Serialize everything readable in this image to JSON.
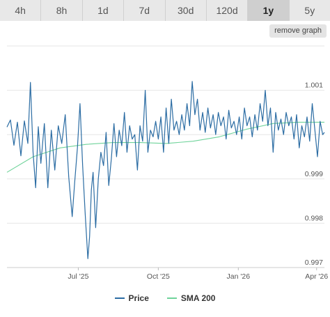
{
  "tabs": [
    {
      "label": "4h",
      "active": false
    },
    {
      "label": "8h",
      "active": false
    },
    {
      "label": "1d",
      "active": false
    },
    {
      "label": "7d",
      "active": false
    },
    {
      "label": "30d",
      "active": false
    },
    {
      "label": "120d",
      "active": false
    },
    {
      "label": "1y",
      "active": true
    },
    {
      "label": "5y",
      "active": false
    }
  ],
  "remove_graph_label": "remove graph",
  "colors": {
    "price": "#2b6ca3",
    "sma": "#6fd39a",
    "grid": "#e6e6e6"
  },
  "chart_data": {
    "type": "line",
    "title": "",
    "xlabel": "",
    "ylabel": "",
    "x_range": [
      "2025-04-10",
      "2026-04-10"
    ],
    "ylim": [
      0.997,
      1.002
    ],
    "y_ticks": [
      0.997,
      0.998,
      0.999,
      1.001
    ],
    "y_tick_labels": [
      "0.997",
      "0.998",
      "0.999",
      "1.001"
    ],
    "x_ticks": [
      "2025-07-01",
      "2025-10-01",
      "2026-01-01",
      "2026-04-01"
    ],
    "x_tick_labels": [
      "Jul '25",
      "Oct '25",
      "Jan '26",
      "Apr '26"
    ],
    "legend_position": "bottom",
    "series": [
      {
        "name": "Price",
        "points": [
          [
            "2025-04-10",
            1.00017
          ],
          [
            "2025-04-14",
            1.00033
          ],
          [
            "2025-04-18",
            0.99976
          ],
          [
            "2025-04-22",
            1.00028
          ],
          [
            "2025-04-26",
            0.99952
          ],
          [
            "2025-04-30",
            1.00031
          ],
          [
            "2025-05-04",
            0.9998
          ],
          [
            "2025-05-07",
            1.00118
          ],
          [
            "2025-05-10",
            0.9996
          ],
          [
            "2025-05-13",
            0.9988
          ],
          [
            "2025-05-16",
            1.00018
          ],
          [
            "2025-05-19",
            0.99935
          ],
          [
            "2025-05-23",
            1.00025
          ],
          [
            "2025-05-27",
            0.9988
          ],
          [
            "2025-05-31",
            1.0001
          ],
          [
            "2025-06-04",
            0.9992
          ],
          [
            "2025-06-08",
            1.0002
          ],
          [
            "2025-06-12",
            0.9998
          ],
          [
            "2025-06-16",
            1.00045
          ],
          [
            "2025-06-20",
            0.99905
          ],
          [
            "2025-06-24",
            0.99815
          ],
          [
            "2025-06-27",
            0.99895
          ],
          [
            "2025-06-30",
            0.9997
          ],
          [
            "2025-07-03",
            1.0007
          ],
          [
            "2025-07-06",
            0.9993
          ],
          [
            "2025-07-09",
            0.9982
          ],
          [
            "2025-07-12",
            0.9972
          ],
          [
            "2025-07-14",
            0.9977
          ],
          [
            "2025-07-16",
            0.99875
          ],
          [
            "2025-07-18",
            0.99915
          ],
          [
            "2025-07-21",
            0.9979
          ],
          [
            "2025-07-24",
            0.999
          ],
          [
            "2025-07-27",
            0.9996
          ],
          [
            "2025-07-30",
            0.9993
          ],
          [
            "2025-08-02",
            1.00005
          ],
          [
            "2025-08-05",
            0.99885
          ],
          [
            "2025-08-08",
            0.99945
          ],
          [
            "2025-08-11",
            1.00025
          ],
          [
            "2025-08-14",
            0.9995
          ],
          [
            "2025-08-17",
            1.0001
          ],
          [
            "2025-08-20",
            0.99975
          ],
          [
            "2025-08-23",
            1.0005
          ],
          [
            "2025-08-26",
            0.9996
          ],
          [
            "2025-08-29",
            1.0002
          ],
          [
            "2025-09-01",
            0.9999
          ],
          [
            "2025-09-04",
            1.0
          ],
          [
            "2025-09-07",
            0.9992
          ],
          [
            "2025-09-10",
            1.0002
          ],
          [
            "2025-09-13",
            0.99985
          ],
          [
            "2025-09-16",
            1.001
          ],
          [
            "2025-09-19",
            0.9996
          ],
          [
            "2025-09-22",
            1.0001
          ],
          [
            "2025-09-25",
            0.99995
          ],
          [
            "2025-09-28",
            1.0003
          ],
          [
            "2025-10-01",
            0.9999
          ],
          [
            "2025-10-04",
            1.0004
          ],
          [
            "2025-10-07",
            0.9996
          ],
          [
            "2025-10-10",
            1.0006
          ],
          [
            "2025-10-13",
            0.9998
          ],
          [
            "2025-10-16",
            1.0008
          ],
          [
            "2025-10-19",
            1.0001
          ],
          [
            "2025-10-22",
            1.0003
          ],
          [
            "2025-10-25",
            1.0
          ],
          [
            "2025-10-28",
            1.00045
          ],
          [
            "2025-10-31",
            1.0001
          ],
          [
            "2025-11-03",
            1.0007
          ],
          [
            "2025-11-06",
            1.0002
          ],
          [
            "2025-11-09",
            1.0012
          ],
          [
            "2025-11-12",
            1.00045
          ],
          [
            "2025-11-15",
            1.0008
          ],
          [
            "2025-11-18",
            1.0001
          ],
          [
            "2025-11-21",
            1.0005
          ],
          [
            "2025-11-24",
            1.00005
          ],
          [
            "2025-11-27",
            1.0006
          ],
          [
            "2025-11-30",
            1.00015
          ],
          [
            "2025-12-03",
            1.00045
          ],
          [
            "2025-12-06",
            1.0
          ],
          [
            "2025-12-09",
            1.0005
          ],
          [
            "2025-12-12",
            1.0002
          ],
          [
            "2025-12-15",
            1.0004
          ],
          [
            "2025-12-18",
            0.9999
          ],
          [
            "2025-12-21",
            1.00055
          ],
          [
            "2025-12-24",
            1.00015
          ],
          [
            "2025-12-27",
            1.0003
          ],
          [
            "2025-12-30",
            1.0
          ],
          [
            "2026-01-02",
            1.0004
          ],
          [
            "2026-01-05",
            0.9999
          ],
          [
            "2026-01-08",
            1.0006
          ],
          [
            "2026-01-11",
            1.0002
          ],
          [
            "2026-01-14",
            1.0004
          ],
          [
            "2026-01-17",
            0.99995
          ],
          [
            "2026-01-20",
            1.00045
          ],
          [
            "2026-01-23",
            1.0001
          ],
          [
            "2026-01-26",
            1.0007
          ],
          [
            "2026-01-29",
            1.0003
          ],
          [
            "2026-02-01",
            1.001
          ],
          [
            "2026-02-04",
            1.0002
          ],
          [
            "2026-02-07",
            1.0006
          ],
          [
            "2026-02-10",
            0.9996
          ],
          [
            "2026-02-13",
            1.0005
          ],
          [
            "2026-02-16",
            1.0001
          ],
          [
            "2026-02-19",
            1.00035
          ],
          [
            "2026-02-22",
            1.0
          ],
          [
            "2026-02-25",
            1.0005
          ],
          [
            "2026-02-28",
            1.0002
          ],
          [
            "2026-03-03",
            1.0004
          ],
          [
            "2026-03-06",
            0.9999
          ],
          [
            "2026-03-09",
            1.00045
          ],
          [
            "2026-03-12",
            0.9997
          ],
          [
            "2026-03-15",
            1.0002
          ],
          [
            "2026-03-18",
            0.99995
          ],
          [
            "2026-03-21",
            1.0004
          ],
          [
            "2026-03-24",
            0.99985
          ],
          [
            "2026-03-27",
            1.0007
          ],
          [
            "2026-03-30",
            1.0001
          ],
          [
            "2026-04-02",
            0.9995
          ],
          [
            "2026-04-05",
            1.0003
          ],
          [
            "2026-04-08",
            1.0
          ],
          [
            "2026-04-10",
            1.00005
          ]
        ]
      },
      {
        "name": "SMA 200",
        "points": [
          [
            "2025-04-10",
            0.99915
          ],
          [
            "2025-05-10",
            0.9995
          ],
          [
            "2025-06-10",
            0.9997
          ],
          [
            "2025-07-10",
            0.99978
          ],
          [
            "2025-08-10",
            0.99982
          ],
          [
            "2025-09-10",
            0.99982
          ],
          [
            "2025-10-10",
            0.9998
          ],
          [
            "2025-11-10",
            0.99985
          ],
          [
            "2025-12-10",
            0.99995
          ],
          [
            "2026-01-10",
            1.00012
          ],
          [
            "2026-02-10",
            1.00025
          ],
          [
            "2026-03-10",
            1.00028
          ],
          [
            "2026-04-10",
            1.00028
          ]
        ]
      }
    ]
  }
}
